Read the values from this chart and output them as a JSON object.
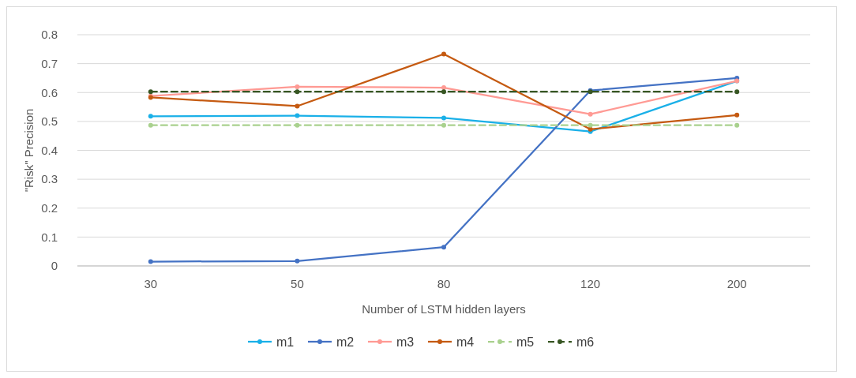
{
  "chart_data": {
    "type": "line",
    "xlabel": "Number of LSTM hidden layers",
    "ylabel": "\"Risk\" Precision",
    "categories": [
      "30",
      "50",
      "80",
      "120",
      "200"
    ],
    "ylim": [
      0,
      0.8
    ],
    "yticks": [
      0,
      0.1,
      0.2,
      0.3,
      0.4,
      0.5,
      0.6,
      0.7,
      0.8
    ],
    "grid": "y",
    "legend": "bottom",
    "marker": "circle",
    "series": [
      {
        "name": "m1",
        "color": "#1ab0e8",
        "values": [
          0.518,
          0.52,
          0.512,
          0.465,
          0.64
        ]
      },
      {
        "name": "m2",
        "color": "#4472c4",
        "values": [
          0.015,
          0.017,
          0.065,
          0.607,
          0.65
        ]
      },
      {
        "name": "m3",
        "color": "#ff9a94",
        "values": [
          0.588,
          0.62,
          0.617,
          0.525,
          0.64
        ]
      },
      {
        "name": "m4",
        "color": "#c55a11",
        "values": [
          0.583,
          0.553,
          0.733,
          0.473,
          0.522
        ]
      },
      {
        "name": "m5",
        "color": "#a9d18e",
        "line_style": "dashed",
        "values": [
          0.487,
          0.487,
          0.487,
          0.487,
          0.487
        ]
      },
      {
        "name": "m6",
        "color": "#375623",
        "line_style": "dashed",
        "values": [
          0.603,
          0.603,
          0.603,
          0.603,
          0.603
        ]
      }
    ]
  }
}
